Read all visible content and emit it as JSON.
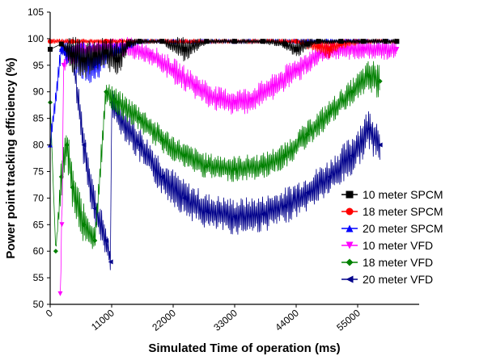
{
  "chart_data": {
    "type": "line",
    "title": "",
    "xlabel": "Simulated Time of operation (ms)",
    "ylabel": "Power point tracking efficiency (%)",
    "xlim": [
      0,
      66000
    ],
    "ylim": [
      50,
      105
    ],
    "x_ticks": [
      0,
      11000,
      22000,
      33000,
      44000,
      55000
    ],
    "x_tick_labels": [
      "0",
      "11000",
      "22000",
      "33000",
      "44000",
      "55000"
    ],
    "y_ticks": [
      50,
      55,
      60,
      65,
      70,
      75,
      80,
      85,
      90,
      95,
      100,
      105
    ],
    "y_tick_labels": [
      "50",
      "55",
      "60",
      "65",
      "70",
      "75",
      "80",
      "85",
      "90",
      "95",
      "100",
      "105"
    ],
    "grid": false,
    "legend_position": "bottom-right",
    "series": [
      {
        "name": "10 meter SPCM",
        "color": "#000000",
        "marker": "square",
        "x": [
          0,
          2000,
          4000,
          6000,
          8000,
          10000,
          12000,
          14000,
          16000,
          20000,
          24000,
          28000,
          33000,
          38000,
          42000,
          44000,
          46000,
          48000,
          52000,
          56000,
          60000,
          62000
        ],
        "y": [
          98,
          99,
          97,
          96,
          97,
          97.5,
          96,
          99,
          99.5,
          99.5,
          98,
          99.5,
          99.5,
          99.5,
          99,
          98,
          99,
          99.5,
          99.5,
          99.5,
          99.5,
          99.5
        ],
        "band": [
          0,
          0,
          4,
          4,
          3,
          3,
          4,
          1,
          0.5,
          0.5,
          2.5,
          0.5,
          0.5,
          0.5,
          1,
          2,
          1,
          0.5,
          0.5,
          0.5,
          0.5,
          0.5
        ]
      },
      {
        "name": "18 meter SPCM",
        "color": "#ff0000",
        "marker": "circle",
        "x": [
          0,
          4000,
          10000,
          20000,
          33000,
          44000,
          46000,
          48000,
          50000,
          52000,
          56000,
          60000,
          62000
        ],
        "y": [
          99.5,
          99.5,
          99.5,
          99.5,
          99.5,
          99.5,
          99,
          98.5,
          98,
          99,
          99.5,
          99.5,
          99.5
        ],
        "band": [
          0.5,
          0.5,
          0.5,
          0.5,
          0.5,
          0.5,
          1,
          1.5,
          2,
          1,
          0.5,
          0.5,
          0.5
        ]
      },
      {
        "name": "20 meter SPCM",
        "color": "#0000ff",
        "marker": "triangle-up",
        "x": [
          0,
          2000,
          4000,
          6000,
          8000,
          10000,
          16000,
          22000,
          33000,
          44000,
          55000,
          62000
        ],
        "y": [
          80,
          98,
          97,
          96,
          95,
          97,
          99.5,
          99.5,
          99.5,
          99.5,
          99.5,
          99.5
        ],
        "band": [
          2,
          2,
          3,
          4,
          4,
          2,
          0.5,
          0.5,
          0.5,
          0.5,
          0.5,
          0.5
        ]
      },
      {
        "name": "10 meter VFD",
        "color": "#ff00ff",
        "marker": "triangle-down",
        "x": [
          1800,
          2100,
          2400,
          3500,
          6000,
          10000,
          14000,
          18000,
          22000,
          26000,
          30000,
          33000,
          36000,
          40000,
          44000,
          48000,
          52000,
          56000,
          62000
        ],
        "y": [
          52,
          65,
          95,
          97,
          97.5,
          98,
          98.5,
          97,
          94,
          91,
          88.5,
          88,
          88.5,
          91,
          94,
          97,
          98,
          98,
          98
        ],
        "band": [
          0,
          5,
          2,
          2,
          2,
          2,
          2,
          2,
          2.5,
          2.5,
          2.5,
          2.5,
          2.5,
          2.5,
          2.5,
          2,
          2,
          2,
          2
        ]
      },
      {
        "name": "18 meter VFD",
        "color": "#008000",
        "marker": "diamond",
        "x": [
          0,
          1000,
          2000,
          3000,
          4000,
          6000,
          8000,
          10000,
          12000,
          16000,
          20000,
          24000,
          28000,
          33000,
          38000,
          42000,
          46000,
          50000,
          54000,
          57000,
          59000
        ],
        "y": [
          88,
          60,
          74,
          80,
          72,
          65,
          62,
          90,
          88,
          85,
          81,
          78,
          76,
          75.5,
          76,
          78,
          82,
          86,
          90,
          93,
          92
        ],
        "band": [
          0,
          0,
          4,
          4,
          4,
          4,
          3,
          2.5,
          2.5,
          2.5,
          2.5,
          2.5,
          2.5,
          2.5,
          2.5,
          2.5,
          2.5,
          2.5,
          2.5,
          3,
          4
        ]
      },
      {
        "name": "20 meter VFD",
        "color": "#00008b",
        "marker": "triangle-left",
        "x": [
          2000,
          4000,
          6000,
          8000,
          10000,
          10800,
          11000,
          12000,
          16000,
          20000,
          24000,
          28000,
          33000,
          38000,
          42000,
          46000,
          50000,
          54000,
          57000,
          59000
        ],
        "y": [
          98,
          97,
          80,
          68,
          62,
          58,
          88,
          86,
          80,
          74,
          70,
          67.5,
          66.5,
          67,
          68.5,
          71,
          74,
          78,
          83,
          80
        ],
        "band": [
          1,
          2,
          4,
          4,
          3,
          2,
          2.5,
          3,
          3.5,
          3.5,
          3.5,
          3.5,
          3.5,
          3.5,
          3.5,
          3.5,
          3.5,
          4,
          4,
          4
        ]
      }
    ]
  }
}
